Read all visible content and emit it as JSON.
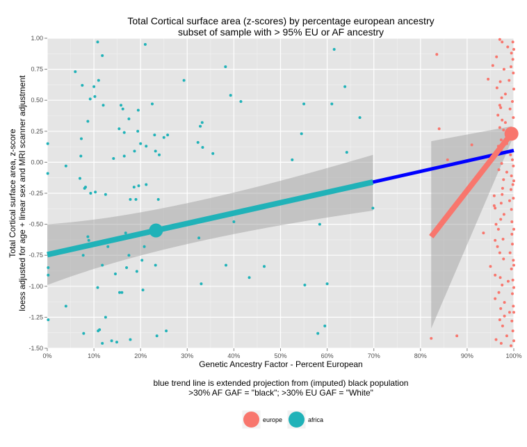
{
  "chart_data": {
    "type": "scatter",
    "title": "Total Cortical surface area (z-scores) by percentage european ancestry",
    "subtitle": "subset of sample with > 95% EU or AF ancestry",
    "xlabel": "Genetic Ancestry Factor - Percent European",
    "ylabel_line1": "Total Cortical surface area, z-score",
    "ylabel_line2": "loess adjusted for age + linear sex and MRI scanner adjustment",
    "caption_line1": "blue trend line is extended projection from (imputed) black population",
    "caption_line2": ">30% AF GAF = \"black\";  >30% EU GAF = \"White\"",
    "xlim": [
      0,
      100
    ],
    "ylim": [
      -1.5,
      1.0
    ],
    "x_ticks": [
      0,
      10,
      20,
      30,
      40,
      50,
      60,
      70,
      80,
      90,
      100
    ],
    "x_tick_labels": [
      "0%",
      "10%",
      "20%",
      "30%",
      "40%",
      "50%",
      "60%",
      "70%",
      "80%",
      "90%",
      "100%"
    ],
    "y_ticks": [
      -1.5,
      -1.25,
      -1.0,
      -0.75,
      -0.5,
      -0.25,
      0.0,
      0.25,
      0.5,
      0.75,
      1.0
    ],
    "y_tick_labels": [
      "-1.50",
      "-1.25",
      "-1.00",
      "-0.75",
      "-0.50",
      "-0.25",
      "0.00",
      "0.25",
      "0.50",
      "0.75",
      "1.00"
    ],
    "grid": true,
    "legend_position": "bottom",
    "colors": {
      "europe": "#f8766d",
      "africa": "#20b2b8",
      "projection": "#0000ff",
      "ribbon": "#9a9a9a",
      "panel": "#e5e5e5",
      "grid": "#ffffff"
    },
    "series": [
      {
        "name": "africa",
        "points": [
          [
            0.1,
            0.15
          ],
          [
            0.1,
            -0.09
          ],
          [
            0.2,
            -0.85
          ],
          [
            0.2,
            -0.91
          ],
          [
            0.2,
            -1.27
          ],
          [
            4,
            -0.03
          ],
          [
            4,
            -1.16
          ],
          [
            6,
            0.73
          ],
          [
            7,
            -0.13
          ],
          [
            7.2,
            0.05
          ],
          [
            7.3,
            0.19
          ],
          [
            7.5,
            0.62
          ],
          [
            7.7,
            -0.75
          ],
          [
            7.8,
            -1.38
          ],
          [
            8,
            -0.21
          ],
          [
            8.2,
            -0.2
          ],
          [
            8.7,
            0.33
          ],
          [
            8.7,
            -0.6
          ],
          [
            8.9,
            -0.63
          ],
          [
            9.2,
            0.51
          ],
          [
            9.3,
            -0.25
          ],
          [
            10,
            0.61
          ],
          [
            10.2,
            0.53
          ],
          [
            10.3,
            -0.24
          ],
          [
            10.8,
            0.97
          ],
          [
            10.8,
            -1.01
          ],
          [
            10.9,
            -1.36
          ],
          [
            11,
            0.66
          ],
          [
            11.2,
            -1.35
          ],
          [
            11.8,
            0.86
          ],
          [
            11.8,
            -0.83
          ],
          [
            11.8,
            -1.46
          ],
          [
            12,
            0.46
          ],
          [
            12.5,
            -0.26
          ],
          [
            12.5,
            -1.25
          ],
          [
            13,
            -0.68
          ],
          [
            13.8,
            -1.44
          ],
          [
            14.2,
            0.03
          ],
          [
            14.6,
            -0.9
          ],
          [
            14.9,
            -1.45
          ],
          [
            15.4,
            0.27
          ],
          [
            15.5,
            -1.05
          ],
          [
            15.8,
            0.46
          ],
          [
            16,
            -1.05
          ],
          [
            16.2,
            0.43
          ],
          [
            16.5,
            0.24
          ],
          [
            16.5,
            0.05
          ],
          [
            16.8,
            -0.57
          ],
          [
            17,
            -0.85
          ],
          [
            17.5,
            0.35
          ],
          [
            17.5,
            -0.75
          ],
          [
            17.8,
            -0.3
          ],
          [
            17.8,
            -1.43
          ],
          [
            18.6,
            -0.2
          ],
          [
            18.7,
            0.09
          ],
          [
            19,
            -0.3
          ],
          [
            19.2,
            -0.88
          ],
          [
            19.4,
            0.25
          ],
          [
            19.5,
            0.42
          ],
          [
            19.6,
            -0.19
          ],
          [
            20,
            0.15
          ],
          [
            20.3,
            -0.79
          ],
          [
            20.5,
            -1.03
          ],
          [
            20.8,
            -0.68
          ],
          [
            21,
            0.95
          ],
          [
            21.2,
            -0.18
          ],
          [
            21.2,
            0.13
          ],
          [
            22.5,
            0.47
          ],
          [
            23,
            0.22
          ],
          [
            23.2,
            0.09
          ],
          [
            23.2,
            -0.83
          ],
          [
            23.5,
            -1.4
          ],
          [
            23.8,
            -0.3
          ],
          [
            24,
            0.06
          ],
          [
            25,
            0.2
          ],
          [
            25.5,
            -1.36
          ],
          [
            25.8,
            0.22
          ],
          [
            29.3,
            0.66
          ],
          [
            32.3,
            0.16
          ],
          [
            32.5,
            -0.61
          ],
          [
            32.8,
            0.29
          ],
          [
            33,
            -0.98
          ],
          [
            33.2,
            0.32
          ],
          [
            33.3,
            0.12
          ],
          [
            35.5,
            0.07
          ],
          [
            38.2,
            0.77
          ],
          [
            38.3,
            -0.83
          ],
          [
            39.3,
            0.54
          ],
          [
            40,
            -0.48
          ],
          [
            41.5,
            0.49
          ],
          [
            43.3,
            -0.93
          ],
          [
            46.5,
            -0.84
          ],
          [
            52.5,
            0.02
          ],
          [
            54.5,
            0.23
          ],
          [
            55,
            0.47
          ],
          [
            55.2,
            -0.99
          ],
          [
            58,
            -1.38
          ],
          [
            58.4,
            -0.5
          ],
          [
            59.5,
            -1.32
          ],
          [
            60,
            -0.98
          ],
          [
            61,
            0.47
          ],
          [
            61.5,
            0.91
          ],
          [
            63.8,
            0.61
          ],
          [
            64.2,
            0.08
          ],
          [
            67,
            0.36
          ],
          [
            69.8,
            -0.37
          ]
        ]
      },
      {
        "name": "europe",
        "points": [
          [
            82.3,
            -1.42
          ],
          [
            83.5,
            0.87
          ],
          [
            84,
            0.27
          ],
          [
            85.8,
            0.02
          ],
          [
            87.8,
            -1.4
          ],
          [
            91,
            0.14
          ],
          [
            93.5,
            -0.57
          ],
          [
            94.5,
            0.67
          ],
          [
            95,
            -0.84
          ],
          [
            95.5,
            0.78
          ],
          [
            95.8,
            -0.27
          ],
          [
            95.8,
            -0.35
          ],
          [
            96,
            -0.37
          ],
          [
            96,
            -0.63
          ],
          [
            96,
            -0.91
          ],
          [
            96,
            -1.1
          ],
          [
            96.2,
            -0.5
          ],
          [
            96.2,
            -1.43
          ],
          [
            96.3,
            0.85
          ],
          [
            96.4,
            0.6
          ],
          [
            96.5,
            -0.68
          ],
          [
            96.6,
            0.38
          ],
          [
            96.7,
            0.13
          ],
          [
            96.7,
            -0.54
          ],
          [
            96.8,
            -0.06
          ],
          [
            96.8,
            -1.05
          ],
          [
            97,
            0.99
          ],
          [
            97,
            0.46
          ],
          [
            97,
            0.28
          ],
          [
            97,
            -0.73
          ],
          [
            97,
            -1.27
          ],
          [
            97.1,
            0.65
          ],
          [
            97.1,
            -0.93
          ],
          [
            97.2,
            0.44
          ],
          [
            97.2,
            -0.46
          ],
          [
            97.2,
            -1.18
          ],
          [
            97.3,
            0.18
          ],
          [
            97.3,
            0.1
          ],
          [
            97.3,
            -0.33
          ],
          [
            97.3,
            -1.46
          ],
          [
            97.4,
            0.52
          ],
          [
            97.4,
            -0.01
          ],
          [
            97.5,
            0.97
          ],
          [
            97.5,
            0.34
          ],
          [
            97.5,
            -0.26
          ],
          [
            97.5,
            -0.99
          ],
          [
            97.6,
            -0.21
          ],
          [
            97.6,
            -1.32
          ],
          [
            97.7,
            0.08
          ],
          [
            97.7,
            -0.62
          ],
          [
            97.8,
            0.26
          ],
          [
            97.8,
            -0.14
          ],
          [
            97.8,
            -0.78
          ],
          [
            97.9,
            0.75
          ],
          [
            97.9,
            -0.42
          ],
          [
            98,
            -1.13
          ],
          [
            98,
            -1.24
          ],
          [
            98.2,
            0.55
          ],
          [
            98.2,
            0.32
          ],
          [
            98.5,
            0.15
          ],
          [
            98.5,
            -0.08
          ],
          [
            98.5,
            -1.4
          ],
          [
            98.7,
            0.93
          ],
          [
            98.8,
            -0.96
          ],
          [
            99,
            0.66
          ],
          [
            99.1,
            -0.31
          ],
          [
            99.1,
            -1.21
          ],
          [
            99.2,
            0.43
          ],
          [
            99.2,
            -0.73
          ],
          [
            99.3,
            0.06
          ],
          [
            99.4,
            0.77
          ],
          [
            99.4,
            -0.22
          ],
          [
            99.4,
            -1.48
          ],
          [
            99.5,
            0.88
          ],
          [
            99.5,
            -0.11
          ],
          [
            99.5,
            -0.38
          ],
          [
            99.5,
            -0.86
          ],
          [
            99.6,
            0.22
          ],
          [
            99.6,
            -0.48
          ],
          [
            99.6,
            -0.58
          ],
          [
            99.6,
            -1.28
          ],
          [
            99.7,
            0.49
          ],
          [
            99.7,
            0.02
          ],
          [
            99.7,
            -0.66
          ],
          [
            99.7,
            -1.06
          ],
          [
            99.8,
            0.97
          ],
          [
            99.8,
            0.83
          ],
          [
            99.8,
            -0.18
          ],
          [
            99.8,
            -0.95
          ],
          [
            99.8,
            -1.36
          ],
          [
            99.9,
            0.72
          ],
          [
            99.9,
            0.36
          ],
          [
            99.9,
            -0.03
          ],
          [
            99.9,
            -0.29
          ],
          [
            99.9,
            -0.79
          ],
          [
            99.9,
            -1.16
          ],
          [
            100,
            0.91
          ],
          [
            100,
            0.59
          ],
          [
            100,
            0.27
          ],
          [
            100,
            -0.15
          ],
          [
            100,
            -0.54
          ],
          [
            100,
            -0.83
          ],
          [
            100,
            -1.01
          ],
          [
            100,
            -1.21
          ],
          [
            100,
            -1.44
          ]
        ]
      }
    ],
    "fit_lines": [
      {
        "name": "africa",
        "x": [
          0,
          69.8
        ],
        "y": [
          -0.745,
          -0.16
        ]
      },
      {
        "name": "projection",
        "x": [
          69.8,
          100
        ],
        "y": [
          -0.16,
          0.095
        ]
      },
      {
        "name": "europe",
        "x": [
          82.3,
          99.5
        ],
        "y": [
          -0.6,
          0.23
        ]
      }
    ],
    "ribbons": [
      {
        "name": "africa",
        "x": [
          0,
          69.8
        ],
        "upper": [
          -0.5,
          0.06
        ],
        "lower": [
          -0.99,
          -0.39
        ],
        "mid_x": 25,
        "mid_upper": -0.44,
        "mid_lower": -0.63
      },
      {
        "name": "europe",
        "x": [
          82.3,
          99.5
        ],
        "upper": [
          0.17,
          0.29
        ],
        "lower": [
          -1.34,
          0.17
        ]
      }
    ],
    "group_means": [
      {
        "name": "africa",
        "x": 23.3,
        "y": -0.55
      },
      {
        "name": "europe",
        "x": 99.5,
        "y": 0.23
      }
    ],
    "legend": [
      {
        "name": "europe",
        "label": "europe"
      },
      {
        "name": "africa",
        "label": "africa"
      }
    ]
  }
}
